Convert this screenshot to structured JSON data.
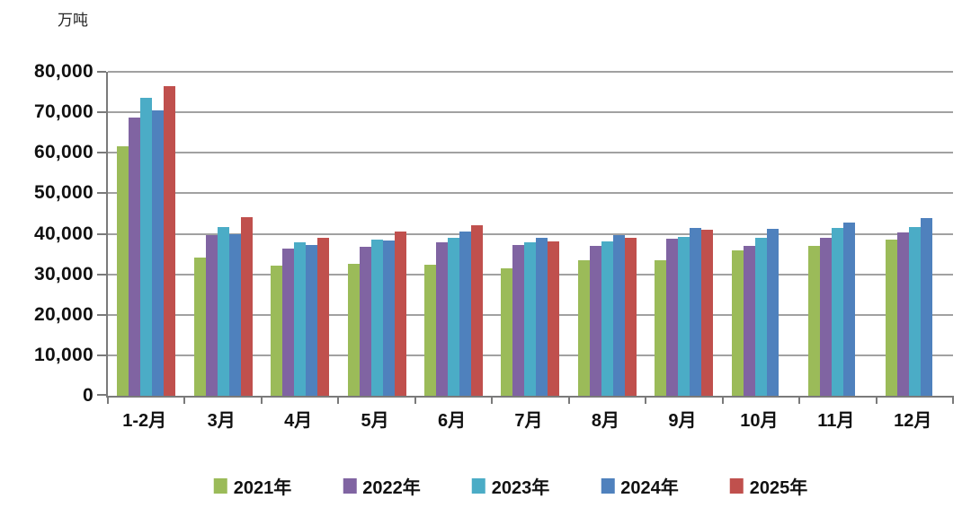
{
  "chart_data": {
    "type": "bar",
    "title": "",
    "ylabel": "万吨",
    "xlabel": "",
    "ylim": [
      0,
      80000
    ],
    "ytick_step": 10000,
    "ytick_labels": [
      "0",
      "10,000",
      "20,000",
      "30,000",
      "40,000",
      "50,000",
      "60,000",
      "70,000",
      "80,000"
    ],
    "grid": true,
    "legend_position": "bottom",
    "categories": [
      "1-2月",
      "3月",
      "4月",
      "5月",
      "6月",
      "7月",
      "8月",
      "9月",
      "10月",
      "11月",
      "12月"
    ],
    "series": [
      {
        "name": "2021年",
        "color": "#9BBB59",
        "values": [
          61700,
          34100,
          32200,
          32600,
          32300,
          31400,
          33500,
          33400,
          35900,
          37100,
          38500
        ]
      },
      {
        "name": "2022年",
        "color": "#8064A2",
        "values": [
          68700,
          39600,
          36300,
          36800,
          37900,
          37300,
          37000,
          38700,
          37000,
          39100,
          40400
        ]
      },
      {
        "name": "2023年",
        "color": "#4BACC6",
        "values": [
          73500,
          41700,
          38000,
          38600,
          39000,
          37800,
          38200,
          39300,
          38900,
          41400,
          41600
        ]
      },
      {
        "name": "2024年",
        "color": "#4F81BD",
        "values": [
          70500,
          39900,
          37200,
          38400,
          40500,
          39000,
          39700,
          41400,
          41200,
          42800,
          43900
        ]
      },
      {
        "name": "2025年",
        "color": "#C0504D",
        "values": [
          76500,
          44100,
          38900,
          40500,
          42100,
          38100,
          39000,
          41000,
          null,
          null,
          null
        ]
      }
    ],
    "axis_color": "#7a7a7a",
    "grid_color": "#a1a1a1",
    "text_color": "#111111"
  }
}
